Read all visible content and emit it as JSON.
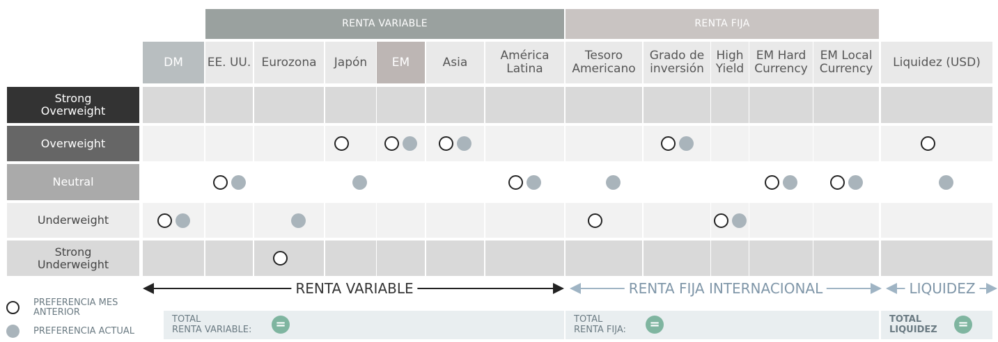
{
  "groups": [
    {
      "label": "RENTA VARIABLE"
    },
    {
      "label": "RENTA FIJA"
    }
  ],
  "rows": [
    "Strong\nOverweight",
    "Overweight",
    "Neutral",
    "Underweight",
    "Strong\nUnderweight"
  ],
  "columns": [
    {
      "label": "DM",
      "previous": "Underweight",
      "current": "Underweight"
    },
    {
      "label": "EE. UU.",
      "previous": "Neutral",
      "current": "Neutral"
    },
    {
      "label": "Eurozona",
      "previous": "Strong\nUnderweight",
      "current": "Underweight"
    },
    {
      "label": "Japón",
      "previous": "Overweight",
      "current": "Neutral"
    },
    {
      "label": "EM",
      "previous": "Overweight",
      "current": "Overweight"
    },
    {
      "label": "Asia",
      "previous": "Overweight",
      "current": "Overweight"
    },
    {
      "label": "América\nLatina",
      "previous": "Neutral",
      "current": "Neutral"
    },
    {
      "label": "Tesoro\nAmericano",
      "previous": "Underweight",
      "current": "Neutral"
    },
    {
      "label": "Grado de\ninversión",
      "previous": "Overweight",
      "current": "Overweight"
    },
    {
      "label": "High\nYield",
      "previous": "Underweight",
      "current": "Underweight"
    },
    {
      "label": "EM Hard\nCurrency",
      "previous": "Neutral",
      "current": "Neutral"
    },
    {
      "label": "EM Local\nCurrency",
      "previous": "Neutral",
      "current": "Neutral"
    },
    {
      "label": "Liquidez (USD)",
      "previous": "Overweight",
      "current": "Neutral"
    }
  ],
  "sections": [
    {
      "label": "RENTA VARIABLE"
    },
    {
      "label": "RENTA FIJA INTERNACIONAL"
    },
    {
      "label": "LIQUIDEZ"
    }
  ],
  "legend": [
    {
      "label": "PREFERENCIA MES\nANTERIOR"
    },
    {
      "label": "PREFERENCIA ACTUAL"
    }
  ],
  "totals": [
    {
      "label": "TOTAL\nRENTA VARIABLE:",
      "sign": "="
    },
    {
      "label": "TOTAL\nRENTA FIJA:",
      "sign": "="
    },
    {
      "label": "TOTAL\nLIQUIDEZ",
      "sign": "="
    }
  ]
}
